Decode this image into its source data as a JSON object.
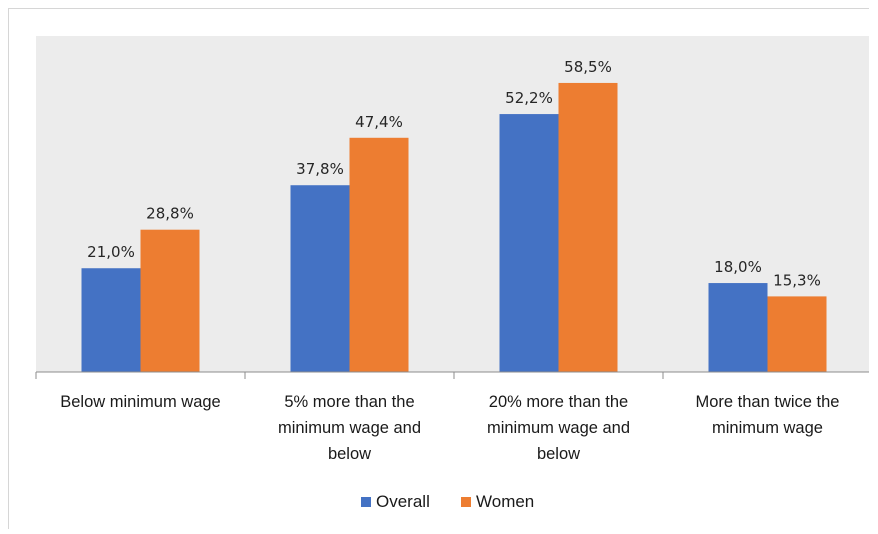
{
  "chart_data": {
    "type": "bar",
    "categories": [
      [
        "Below minimum  wage"
      ],
      [
        "5% more than the",
        "minimum wage and",
        "below"
      ],
      [
        "20% more than the",
        "minimum wage and",
        "below"
      ],
      [
        "More than twice the",
        "minimum wage"
      ]
    ],
    "series": [
      {
        "name": "Overall",
        "color": "#4472c4",
        "values": [
          21.0,
          37.8,
          52.2,
          18.0
        ],
        "labels": [
          "21,0%",
          "37,8%",
          "52,2%",
          "18,0%"
        ]
      },
      {
        "name": "Women",
        "color": "#ed7d31",
        "values": [
          28.8,
          47.4,
          58.5,
          15.3
        ],
        "labels": [
          "28,8%",
          "47,4%",
          "58,5%",
          "15,3%"
        ]
      }
    ],
    "ylim": [
      0,
      68
    ],
    "grid": false,
    "legend_position": "bottom",
    "plot_background": "#ececec"
  }
}
